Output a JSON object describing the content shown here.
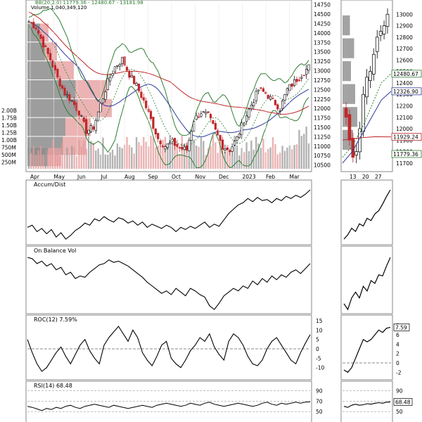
{
  "header": {
    "bb_label": "BB(20,2.0) 11779.36 - 12480.67 - 13181.98",
    "volume_label": "Volume 1,040,349,120"
  },
  "colors": {
    "up": "#000000",
    "down": "#c0282a",
    "bollinger": "#2e7d32",
    "ma_fast": "#2e3a9a",
    "ma_slow": "#c0282a",
    "volume_gray": "#9a9a9a",
    "volume_red": "#e49a9a",
    "vbp_gray": "#8c8c8c",
    "vbp_red": "#e6a0a0"
  },
  "chart_data": [
    {
      "type": "candlestick",
      "name": "price",
      "ylim": [
        10400,
        14800
      ],
      "y_ticks": [
        "14750",
        "14500",
        "14250",
        "14000",
        "13750",
        "13500",
        "13250",
        "13000",
        "12750",
        "12500",
        "12250",
        "12000",
        "11750",
        "11500",
        "11250",
        "11000",
        "10750",
        "10500"
      ],
      "x_labels": [
        "Apr",
        "May",
        "Jun",
        "Jul",
        "Aug",
        "Sep",
        "Oct",
        "Nov",
        "Dec",
        "2023",
        "Feb",
        "Mar"
      ],
      "close_path": [
        [
          0,
          14300
        ],
        [
          3,
          14150
        ],
        [
          6,
          13700
        ],
        [
          9,
          13300
        ],
        [
          12,
          12800
        ],
        [
          15,
          12400
        ],
        [
          18,
          12200
        ],
        [
          21,
          11900
        ],
        [
          24,
          11400
        ],
        [
          27,
          11500
        ],
        [
          30,
          12100
        ],
        [
          33,
          12700
        ],
        [
          36,
          13100
        ],
        [
          39,
          13300
        ],
        [
          42,
          12900
        ],
        [
          45,
          12600
        ],
        [
          48,
          12200
        ],
        [
          51,
          11700
        ],
        [
          54,
          11200
        ],
        [
          57,
          11000
        ],
        [
          60,
          11100
        ],
        [
          63,
          10950
        ],
        [
          66,
          10900
        ],
        [
          69,
          11700
        ],
        [
          72,
          11900
        ],
        [
          75,
          11800
        ],
        [
          78,
          11400
        ],
        [
          81,
          11000
        ],
        [
          84,
          10900
        ],
        [
          87,
          11200
        ],
        [
          90,
          11700
        ],
        [
          93,
          12100
        ],
        [
          96,
          12500
        ],
        [
          99,
          12400
        ],
        [
          102,
          12200
        ],
        [
          105,
          12000
        ],
        [
          108,
          12500
        ],
        [
          111,
          12700
        ],
        [
          114,
          12900
        ],
        [
          117,
          13100
        ]
      ],
      "volume_axis_ticks": [
        "2.00B",
        "1.75B",
        "1.50B",
        "1.25B",
        "1.00B",
        "750M",
        "500M",
        "250M"
      ],
      "volume_by_price": [
        {
          "price": 14000,
          "volume": 0.25
        },
        {
          "price": 13500,
          "volume": 0.35
        },
        {
          "price": 13000,
          "volume": 0.55
        },
        {
          "price": 12500,
          "volume": 0.95
        },
        {
          "price": 12000,
          "volume": 1.0
        },
        {
          "price": 11500,
          "volume": 0.75
        },
        {
          "price": 11000,
          "volume": 0.7
        },
        {
          "price": 10700,
          "volume": 0.4
        }
      ]
    },
    {
      "type": "candlestick",
      "name": "price-zoom",
      "ylim": [
        11650,
        13100
      ],
      "y_ticks": [
        "13000",
        "12900",
        "12800",
        "12700",
        "12600",
        "12500",
        "12400",
        "12300",
        "12200",
        "12100",
        "12000",
        "11900",
        "11800",
        "11700"
      ],
      "x_labels": [
        "13",
        "20",
        "27"
      ],
      "value_tags": [
        "12480.67",
        "12326.90",
        "11929.24",
        "11779.36"
      ],
      "close_path": [
        [
          0,
          12100
        ],
        [
          1,
          11900
        ],
        [
          2,
          11750
        ],
        [
          3,
          11800
        ],
        [
          4,
          12000
        ],
        [
          5,
          12300
        ],
        [
          6,
          12450
        ],
        [
          7,
          12500
        ],
        [
          8,
          12650
        ],
        [
          9,
          12800
        ],
        [
          10,
          12850
        ],
        [
          11,
          12900
        ],
        [
          12,
          13000
        ]
      ]
    },
    {
      "type": "line",
      "name": "accum-dist",
      "title": "Accum/Dist",
      "y": [
        30,
        34,
        22,
        28,
        18,
        26,
        12,
        20,
        8,
        15,
        24,
        30,
        38,
        34,
        46,
        42,
        50,
        44,
        40,
        48,
        45,
        38,
        42,
        34,
        40,
        30,
        36,
        32,
        28,
        34,
        30,
        22,
        30,
        26,
        32,
        28,
        34,
        40,
        30,
        36,
        32,
        44,
        56,
        64,
        72,
        76,
        84,
        78,
        86,
        80,
        82,
        76,
        84,
        80,
        88,
        84,
        90,
        86,
        92,
        100
      ],
      "zoom_y": [
        10,
        18,
        30,
        24,
        38,
        34,
        48,
        44,
        56,
        62,
        74,
        88,
        100
      ]
    },
    {
      "type": "line",
      "name": "on-balance-volume",
      "title": "On Balance Vol",
      "y": [
        90,
        88,
        80,
        84,
        76,
        80,
        70,
        74,
        62,
        66,
        56,
        60,
        58,
        66,
        72,
        78,
        80,
        86,
        82,
        84,
        80,
        76,
        70,
        64,
        58,
        50,
        44,
        38,
        32,
        36,
        30,
        40,
        34,
        28,
        40,
        36,
        30,
        26,
        12,
        6,
        16,
        28,
        34,
        40,
        36,
        44,
        40,
        52,
        46,
        56,
        50,
        60,
        54,
        62,
        58,
        66,
        70,
        64,
        72,
        80
      ],
      "zoom_y": [
        20,
        10,
        30,
        40,
        30,
        50,
        42,
        60,
        55,
        70,
        68,
        85,
        100
      ]
    },
    {
      "type": "line",
      "name": "roc",
      "title": "ROC(12) 7.59%",
      "value_tag": "7.59",
      "ylim": [
        -15,
        15
      ],
      "y_ticks": [
        "15",
        "10",
        "5",
        "0",
        "-5",
        "-10"
      ],
      "zoom_y_ticks": [
        "8",
        "6",
        "4",
        "2",
        "0",
        "-2"
      ],
      "y": [
        5,
        -2,
        -8,
        -12,
        -10,
        -6,
        -2,
        1,
        -4,
        -8,
        -3,
        2,
        5,
        -1,
        -5,
        -8,
        2,
        6,
        9,
        12,
        8,
        4,
        10,
        6,
        -2,
        -6,
        -9,
        -4,
        2,
        4,
        -5,
        -8,
        -10,
        -6,
        -1,
        2,
        6,
        4,
        8,
        1,
        -3,
        -6,
        4,
        8,
        6,
        2,
        -4,
        -8,
        -9,
        -6,
        0,
        4,
        6,
        2,
        -2,
        -6,
        -8,
        -2,
        3,
        7.59
      ],
      "zoom_y": [
        -1.5,
        -2,
        -1,
        1,
        3,
        5,
        4.5,
        5,
        6,
        7,
        6.5,
        7.4,
        7.59
      ]
    },
    {
      "type": "line",
      "name": "rsi",
      "title": "RSI(14) 68.48",
      "value_tag": "68.48",
      "ylim": [
        30,
        100
      ],
      "y_ticks": [
        "90",
        "70",
        "50"
      ],
      "zoom_y_ticks": [
        "90",
        "70",
        "50"
      ],
      "y": [
        60,
        58,
        55,
        52,
        56,
        54,
        58,
        56,
        60,
        62,
        58,
        56,
        60,
        62,
        64,
        62,
        60,
        58,
        62,
        60,
        58,
        56,
        58,
        60,
        62,
        60,
        58,
        62,
        64,
        66,
        64,
        62,
        60,
        62,
        66,
        64,
        62,
        66,
        68,
        64,
        62,
        60,
        62,
        64,
        66,
        64,
        62,
        60,
        62,
        66,
        68,
        64,
        62,
        66,
        64,
        66,
        68,
        66,
        68,
        68.48
      ],
      "zoom_y": [
        60,
        58,
        62,
        64,
        62,
        63,
        65,
        64,
        66,
        67,
        66,
        68,
        68.48
      ]
    }
  ]
}
